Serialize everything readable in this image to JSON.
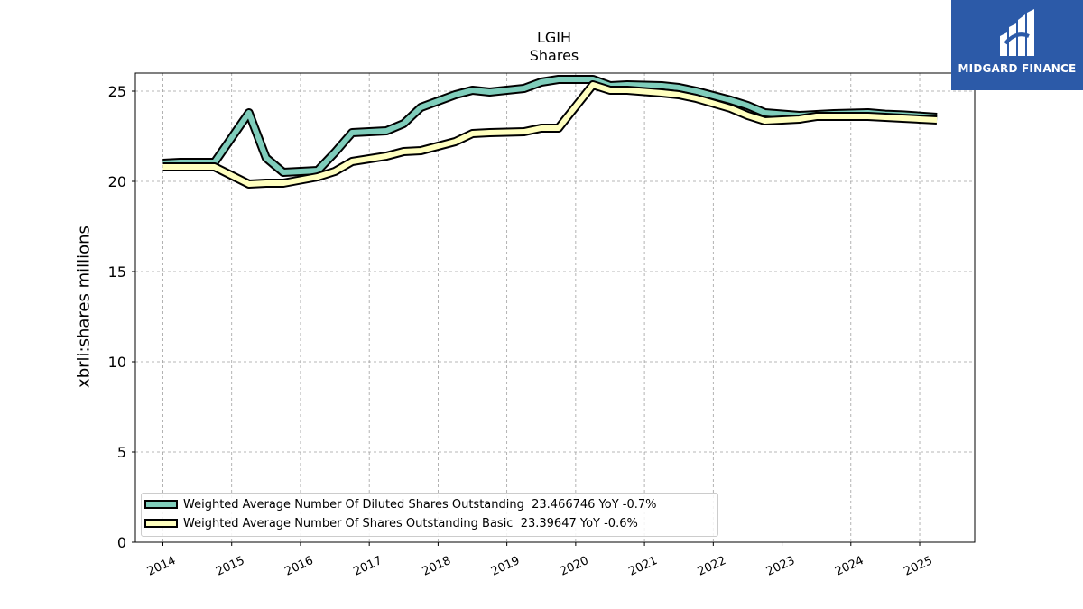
{
  "chart_data": {
    "type": "line",
    "title": "LGIH",
    "subtitle": "Shares",
    "ylabel": "xbrli:shares millions",
    "xlabel": "",
    "ylim": [
      0,
      26
    ],
    "xlim": [
      2013.6,
      2025.8
    ],
    "yticks": [
      0,
      5,
      10,
      15,
      20,
      25
    ],
    "xticks": [
      "2014",
      "2015",
      "2016",
      "2017",
      "2018",
      "2019",
      "2020",
      "2021",
      "2022",
      "2023",
      "2024",
      "2025"
    ],
    "grid": true,
    "legend_position": "lower-left",
    "series": [
      {
        "name": "Weighted Average Number Of Diluted Shares Outstanding",
        "legend_label": "Weighted Average Number Of Diluted Shares Outstanding  23.466746 YoY -0.7%",
        "color": "#7fcdbb",
        "x": [
          2014.0,
          2014.25,
          2014.75,
          2015.25,
          2015.5,
          2015.75,
          2016.25,
          2016.5,
          2016.75,
          2017.25,
          2017.5,
          2017.75,
          2018.25,
          2018.5,
          2018.75,
          2019.25,
          2019.5,
          2019.75,
          2020.25,
          2020.5,
          2020.75,
          2021.25,
          2021.5,
          2021.75,
          2022.25,
          2022.5,
          2022.75,
          2023.25,
          2023.5,
          2023.75,
          2024.25,
          2024.5,
          2024.75,
          2025.25
        ],
        "y": [
          21.0,
          21.05,
          21.05,
          23.8,
          21.3,
          20.5,
          20.6,
          21.6,
          22.7,
          22.8,
          23.2,
          24.1,
          24.8,
          25.05,
          24.95,
          25.15,
          25.5,
          25.65,
          25.65,
          25.3,
          25.35,
          25.3,
          25.2,
          25.0,
          24.5,
          24.2,
          23.8,
          23.65,
          23.7,
          23.75,
          23.8,
          23.72,
          23.68,
          23.55
        ]
      },
      {
        "name": "Weighted Average Number Of Shares Outstanding Basic",
        "legend_label": "Weighted Average Number Of Shares Outstanding Basic  23.39647 YoY -0.6%",
        "color": "#ffffbf",
        "x": [
          2014.0,
          2014.25,
          2014.75,
          2015.25,
          2015.5,
          2015.75,
          2016.25,
          2016.5,
          2016.75,
          2017.25,
          2017.5,
          2017.75,
          2018.25,
          2018.5,
          2018.75,
          2019.25,
          2019.5,
          2019.75,
          2020.25,
          2020.5,
          2020.75,
          2021.25,
          2021.5,
          2021.75,
          2022.25,
          2022.5,
          2022.75,
          2023.25,
          2023.5,
          2023.75,
          2024.25,
          2024.5,
          2024.75,
          2025.25
        ],
        "y": [
          20.8,
          20.8,
          20.8,
          19.85,
          19.9,
          19.9,
          20.25,
          20.55,
          21.1,
          21.4,
          21.65,
          21.7,
          22.2,
          22.65,
          22.7,
          22.75,
          22.95,
          22.95,
          25.35,
          25.05,
          25.05,
          24.9,
          24.8,
          24.6,
          24.05,
          23.65,
          23.35,
          23.45,
          23.6,
          23.6,
          23.6,
          23.55,
          23.5,
          23.4
        ]
      }
    ]
  },
  "logo": {
    "text": "MIDGARD FINANCE",
    "background": "#2c5aa8"
  }
}
